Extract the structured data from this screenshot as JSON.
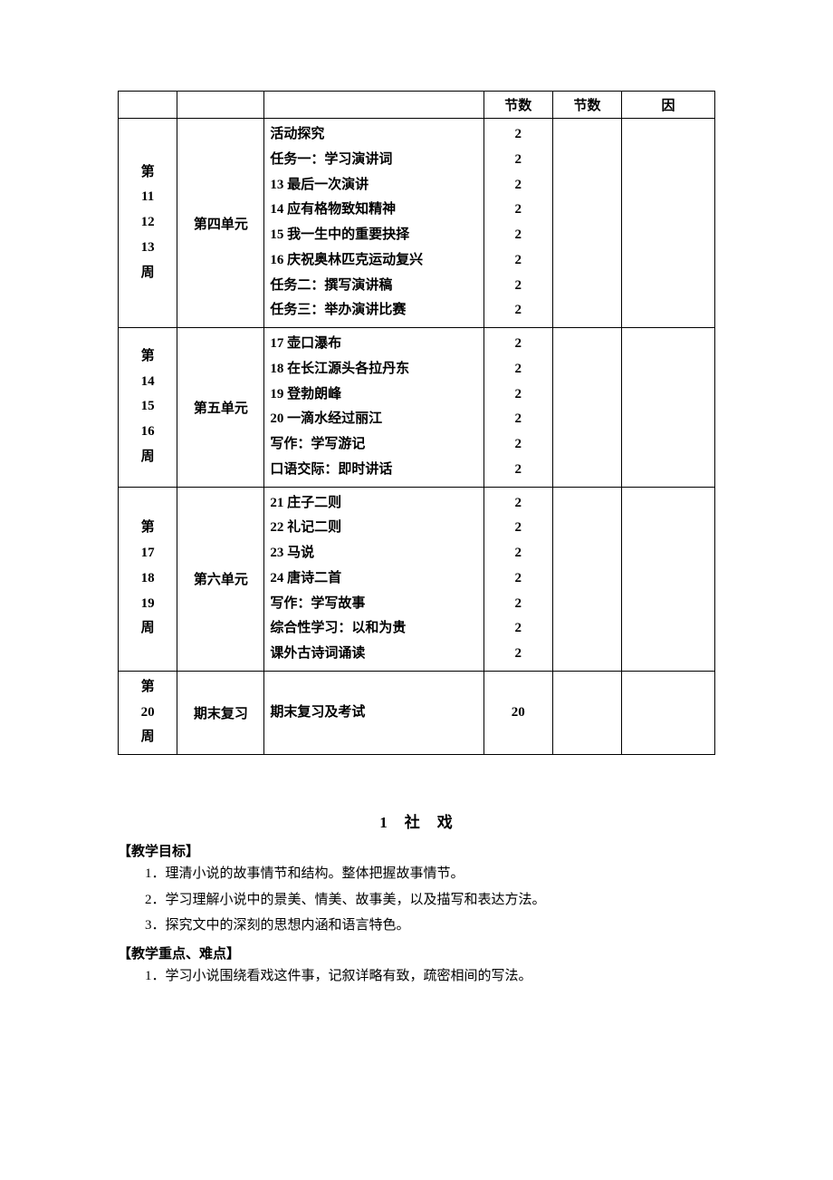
{
  "headerRow": {
    "col4": "节数",
    "col5": "节数",
    "col6": "因"
  },
  "rows": [
    {
      "week": "第\n11\n12\n13\n周",
      "unit": "第四单元",
      "items": [
        "活动探究",
        "任务一：学习演讲词",
        "13 最后一次演讲",
        "14 应有格物致知精神",
        "15 我一生中的重要抉择",
        "16 庆祝奥林匹克运动复兴",
        "任务二：撰写演讲稿",
        "任务三：举办演讲比赛"
      ],
      "counts": [
        "2",
        "2",
        "2",
        "2",
        "2",
        "2",
        "2",
        "2"
      ]
    },
    {
      "week": "第\n14\n15\n16\n周",
      "unit": "第五单元",
      "items": [
        "17 壶口瀑布",
        "18 在长江源头各拉丹东",
        "19 登勃朗峰",
        "20 一滴水经过丽江",
        "写作：学写游记",
        "口语交际：即时讲话"
      ],
      "counts": [
        "2",
        "2",
        "2",
        "2",
        "2",
        "2"
      ]
    },
    {
      "week": "第\n17\n18\n19\n周",
      "unit": "第六单元",
      "items": [
        "21 庄子二则",
        "22 礼记二则",
        "23 马说",
        "24 唐诗二首",
        "写作：学写故事",
        "综合性学习：以和为贵",
        "课外古诗词诵读"
      ],
      "counts": [
        "2",
        "2",
        "2",
        "2",
        "2",
        "2",
        "2"
      ]
    },
    {
      "week": "第\n20\n周",
      "unit": "期末复习",
      "items": [
        "期末复习及考试"
      ],
      "counts": [
        "20"
      ]
    }
  ],
  "colWidths": {
    "c1": "50px",
    "c2": "78px",
    "c3": "210px",
    "c4": "60px",
    "c5": "60px",
    "c6": "84px"
  },
  "lesson": {
    "title": "1　社　戏",
    "goalsHead": "【教学目标】",
    "goals": [
      "1．理清小说的故事情节和结构。整体把握故事情节。",
      "2．学习理解小说中的景美、情美、故事美，以及描写和表达方法。",
      "3．探究文中的深刻的思想内涵和语言特色。"
    ],
    "focusHead": "【教学重点、难点】",
    "focus": [
      "1．学习小说围绕看戏这件事，记叙详略有致，疏密相间的写法。"
    ]
  }
}
